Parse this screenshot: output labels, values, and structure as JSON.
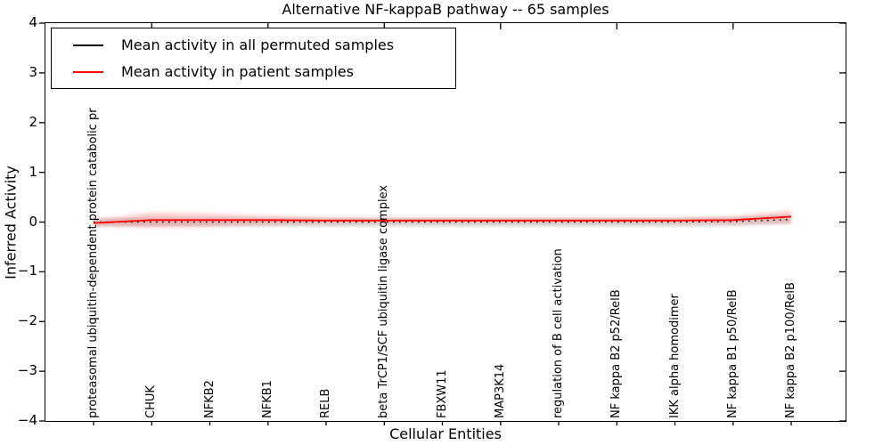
{
  "chart_data": {
    "type": "line",
    "title": "Alternative NF-kappaB pathway -- 65 samples",
    "xlabel": "Cellular Entities",
    "ylabel": "Inferred Activity",
    "ylim": [
      -4,
      4
    ],
    "yticks": [
      4,
      3,
      2,
      1,
      0,
      -1,
      -2,
      -3,
      -4
    ],
    "ytick_labels": [
      "4",
      "3",
      "2",
      "1",
      "0",
      "−1",
      "−2",
      "−3",
      "−4"
    ],
    "grid": false,
    "legend_position": "upper left",
    "categories": [
      "proteasomal ubiquitin-dependent protein catabolic pr",
      "CHUK",
      "NFKB2",
      "NFKB1",
      "RELB",
      "beta TrCP1/SCF ubiquitin ligase complex",
      "FBXW11",
      "MAP3K14",
      "regulation of B cell activation",
      "NF kappa B2 p52/RelB",
      "IKK alpha homodimer",
      "NF kappa B1 p50/RelB",
      "NF kappa B2 p100/RelB"
    ],
    "series": [
      {
        "name": "Mean activity in all permuted samples",
        "color": "#000000",
        "line_style": "dotted",
        "values": [
          0,
          0,
          0,
          0,
          0,
          0,
          0,
          0,
          0,
          0,
          0,
          0.01,
          0.05
        ],
        "band": [
          0.09,
          0.09,
          0.09,
          0.09,
          0.09,
          0.09,
          0.09,
          0.09,
          0.09,
          0.09,
          0.09,
          0.09,
          0.09
        ],
        "band_color": "#e0e0e0",
        "band_opacity": 1
      },
      {
        "name": "Mean activity in patient samples",
        "color": "#ff0000",
        "line_style": "solid",
        "values": [
          -0.02,
          0.04,
          0.04,
          0.04,
          0.03,
          0.03,
          0.03,
          0.03,
          0.03,
          0.03,
          0.03,
          0.04,
          0.11
        ],
        "band": [
          0.05,
          0.15,
          0.13,
          0.08,
          0.06,
          0.05,
          0.05,
          0.05,
          0.05,
          0.05,
          0.05,
          0.07,
          0.12
        ],
        "band_color": "#ff0000",
        "band_opacity": 0.2
      }
    ]
  }
}
